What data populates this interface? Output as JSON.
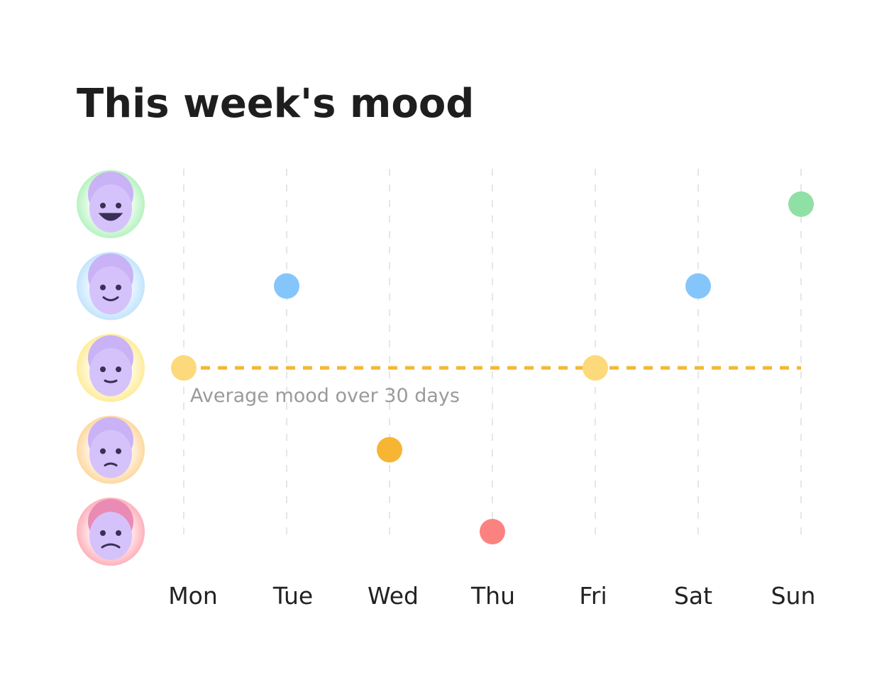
{
  "chart_data": {
    "type": "dot",
    "title": "This week's mood",
    "categories": [
      "Mon",
      "Tue",
      "Wed",
      "Thu",
      "Fri",
      "Sat",
      "Sun"
    ],
    "values": [
      3,
      4,
      2,
      1,
      3,
      4,
      5
    ],
    "colors": [
      "#fcd97a",
      "#84c6fb",
      "#f7b534",
      "#fb8280",
      "#fcd97a",
      "#84c6fb",
      "#8fe0a4"
    ],
    "ylim": [
      1,
      5
    ],
    "yticks": [
      1,
      2,
      3,
      4,
      5
    ],
    "average": 3,
    "average_label": "Average mood over 30 days",
    "average_color": "#f5b731",
    "grid": true
  }
}
